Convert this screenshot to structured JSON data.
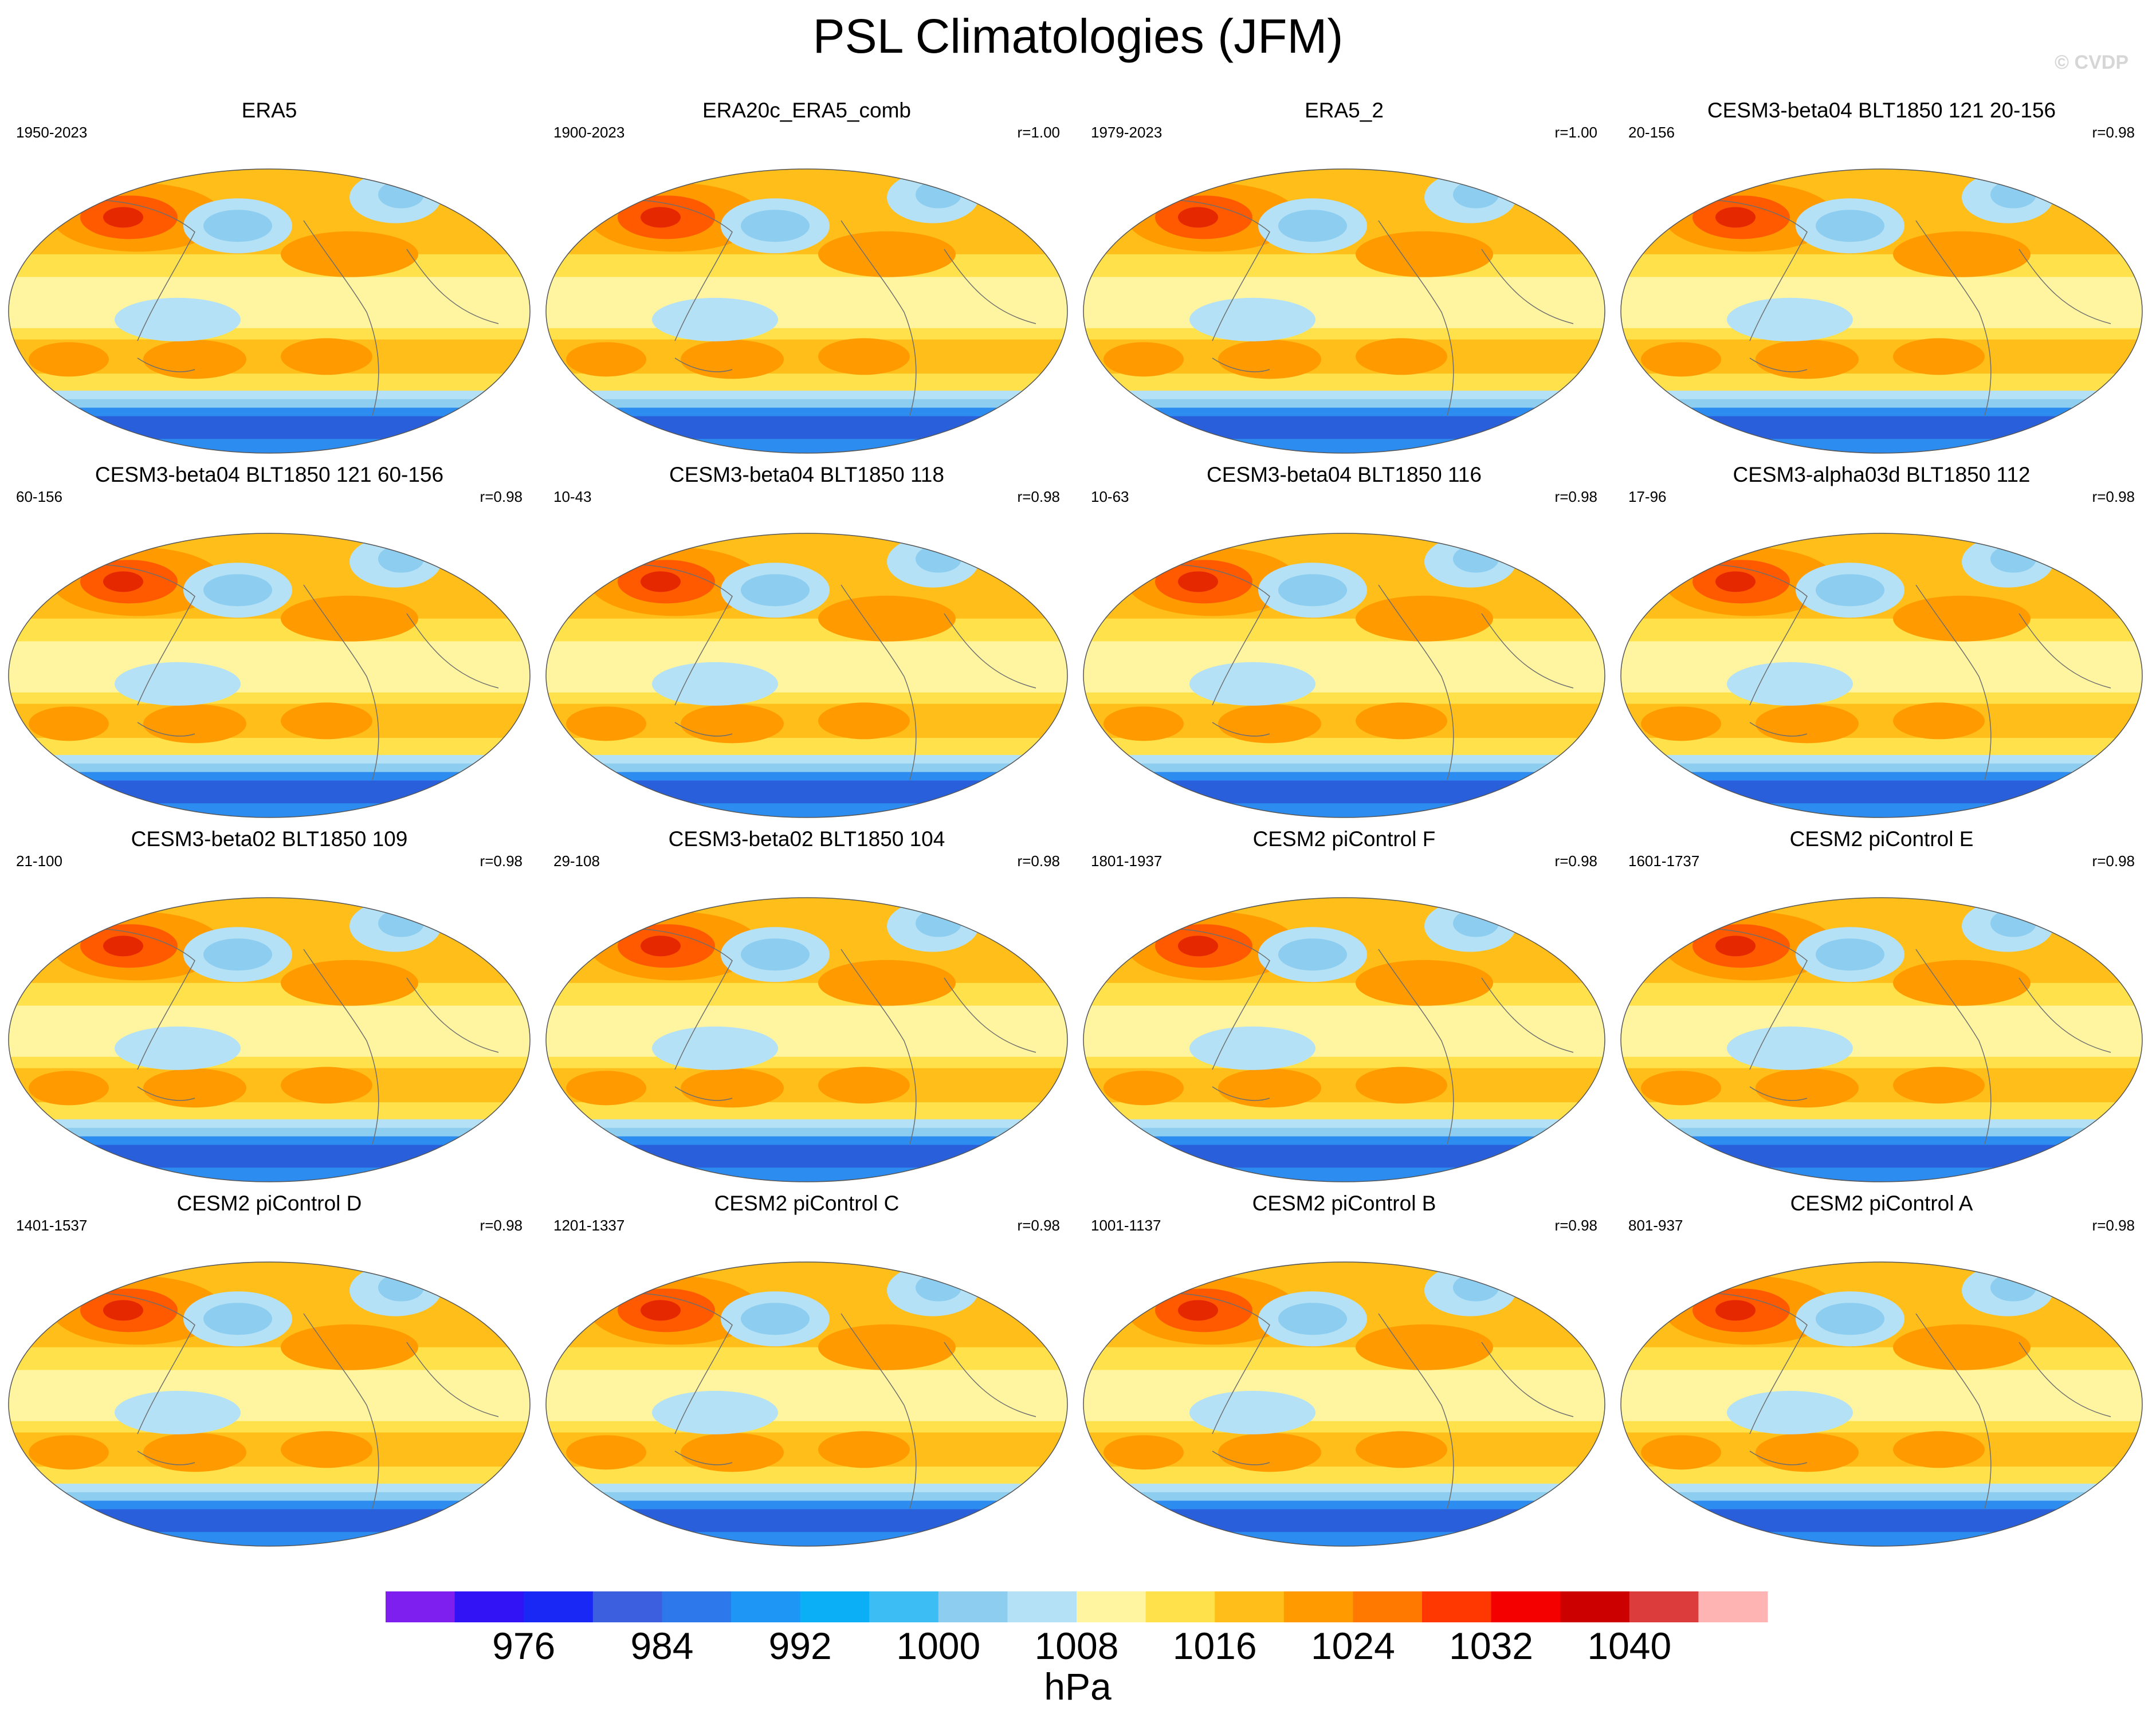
{
  "title": "PSL Climatologies (JFM)",
  "watermark": "© CVDP",
  "panels": [
    {
      "title": "ERA5",
      "years": "1950-2023",
      "r": ""
    },
    {
      "title": "ERA20c_ERA5_comb",
      "years": "1900-2023",
      "r": "r=1.00"
    },
    {
      "title": "ERA5_2",
      "years": "1979-2023",
      "r": "r=1.00"
    },
    {
      "title": "CESM3-beta04 BLT1850 121 20-156",
      "years": "20-156",
      "r": "r=0.98"
    },
    {
      "title": "CESM3-beta04 BLT1850 121 60-156",
      "years": "60-156",
      "r": "r=0.98"
    },
    {
      "title": "CESM3-beta04 BLT1850 118",
      "years": "10-43",
      "r": "r=0.98"
    },
    {
      "title": "CESM3-beta04 BLT1850 116",
      "years": "10-63",
      "r": "r=0.98"
    },
    {
      "title": "CESM3-alpha03d BLT1850 112",
      "years": "17-96",
      "r": "r=0.98"
    },
    {
      "title": "CESM3-beta02 BLT1850 109",
      "years": "21-100",
      "r": "r=0.98"
    },
    {
      "title": "CESM3-beta02 BLT1850 104",
      "years": "29-108",
      "r": "r=0.98"
    },
    {
      "title": "CESM2 piControl F",
      "years": "1801-1937",
      "r": "r=0.98"
    },
    {
      "title": "CESM2 piControl E",
      "years": "1601-1737",
      "r": "r=0.98"
    },
    {
      "title": "CESM2 piControl D",
      "years": "1401-1537",
      "r": "r=0.98"
    },
    {
      "title": "CESM2 piControl C",
      "years": "1201-1337",
      "r": "r=0.98"
    },
    {
      "title": "CESM2 piControl B",
      "years": "1001-1137",
      "r": "r=0.98"
    },
    {
      "title": "CESM2 piControl A",
      "years": "801-937",
      "r": "r=0.98"
    }
  ],
  "colorbar": {
    "units": "hPa",
    "labels": [
      "976",
      "984",
      "992",
      "1000",
      "1008",
      "1016",
      "1024",
      "1032",
      "1040"
    ],
    "colors": [
      "#7e1ff0",
      "#3213f5",
      "#1a28f5",
      "#3c5fe0",
      "#2d78eb",
      "#1e96f5",
      "#0aaff5",
      "#3cbef5",
      "#8ccdf0",
      "#b4e1f5",
      "#fff5a0",
      "#ffe14b",
      "#ffbe19",
      "#ff9b00",
      "#ff7800",
      "#ff3700",
      "#f50000",
      "#cd0000",
      "#dc3c3c",
      "#ffb4b4"
    ]
  },
  "map_colors": {
    "deep_low": "#2a5fdc",
    "low": "#2d8cf0",
    "low_light": "#8ccdf0",
    "low_pale": "#b4e1f5",
    "neutral": "#fff5a0",
    "mid": "#ffe14b",
    "high": "#ffbe19",
    "higher": "#ff9b00",
    "very_high": "#ff5a00",
    "peak": "#e62800",
    "coast": "#6e6e6e"
  }
}
